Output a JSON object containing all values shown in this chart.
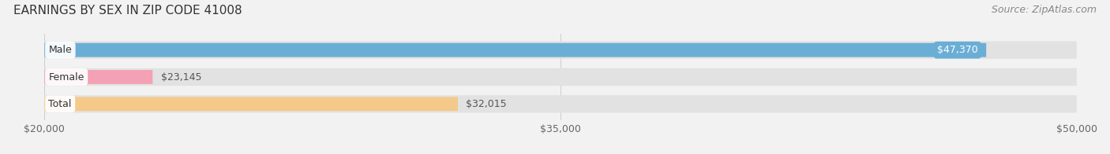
{
  "title": "EARNINGS BY SEX IN ZIP CODE 41008",
  "source": "Source: ZipAtlas.com",
  "categories": [
    "Male",
    "Female",
    "Total"
  ],
  "values": [
    47370,
    23145,
    32015
  ],
  "labels": [
    "$47,370",
    "$23,145",
    "$32,015"
  ],
  "bar_colors": [
    "#6aaed6",
    "#f4a0b5",
    "#f5c98a"
  ],
  "xmin": 20000,
  "xmax": 50000,
  "xticks": [
    20000,
    35000,
    50000
  ],
  "xtick_labels": [
    "$20,000",
    "$35,000",
    "$50,000"
  ],
  "background_color": "#f2f2f2",
  "bar_bg_color": "#e2e2e2",
  "title_fontsize": 11,
  "source_fontsize": 9,
  "label_fontsize": 9,
  "category_fontsize": 9,
  "tick_fontsize": 9
}
